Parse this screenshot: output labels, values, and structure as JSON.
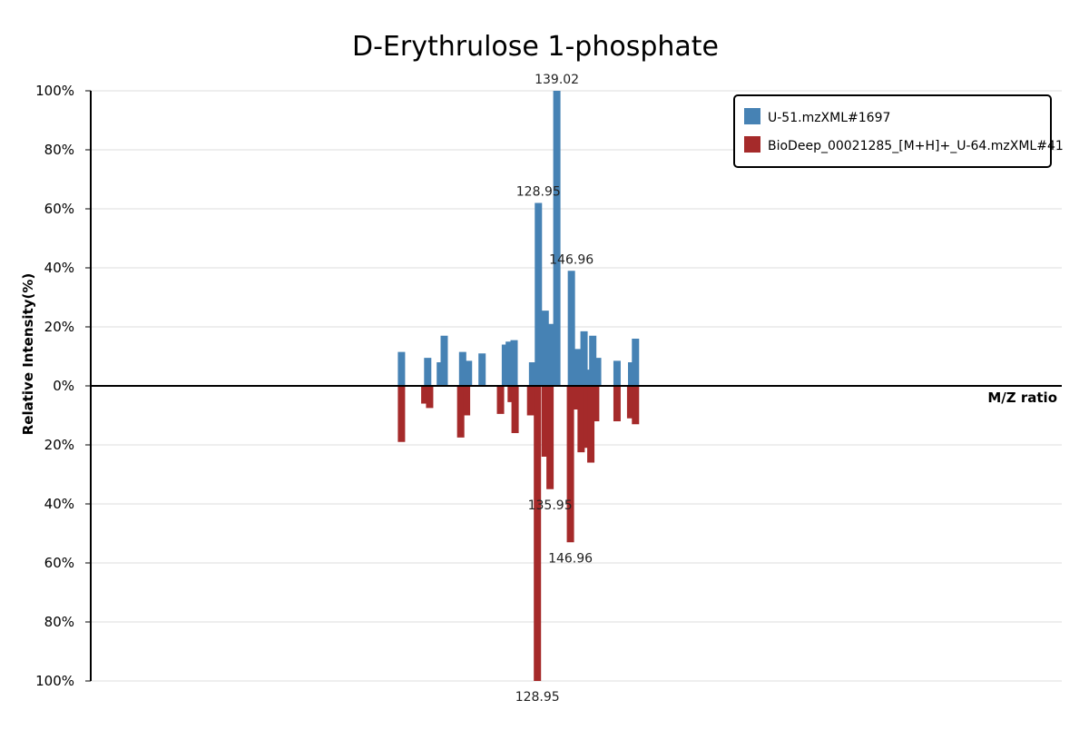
{
  "chart_data": {
    "type": "bar",
    "title": "D-Erythrulose 1-phosphate",
    "xlabel": "M/Z ratio",
    "ylabel": "Relative Intensity(%)",
    "ylim": [
      -100,
      100
    ],
    "yticks": [
      {
        "value": 100,
        "label": "100%"
      },
      {
        "value": 80,
        "label": "80%"
      },
      {
        "value": 60,
        "label": "60%"
      },
      {
        "value": 40,
        "label": "40%"
      },
      {
        "value": 20,
        "label": "20%"
      },
      {
        "value": 0,
        "label": "0%"
      },
      {
        "value": -20,
        "label": "20%"
      },
      {
        "value": -40,
        "label": "40%"
      },
      {
        "value": -60,
        "label": "60%"
      },
      {
        "value": -80,
        "label": "80%"
      },
      {
        "value": -100,
        "label": "100%"
      }
    ],
    "grid": true,
    "legend_position": "top-right",
    "series": [
      {
        "name": "U-51.mzXML#1697",
        "color": "#4682b4",
        "direction": "up",
        "peaks": [
          {
            "x": 0.32,
            "y": 11.5
          },
          {
            "x": 0.347,
            "y": 9.5
          },
          {
            "x": 0.36,
            "y": 8.0
          },
          {
            "x": 0.364,
            "y": 17.0
          },
          {
            "x": 0.383,
            "y": 11.5
          },
          {
            "x": 0.389,
            "y": 8.5
          },
          {
            "x": 0.403,
            "y": 11.0
          },
          {
            "x": 0.427,
            "y": 14.0
          },
          {
            "x": 0.431,
            "y": 15.0
          },
          {
            "x": 0.436,
            "y": 15.5
          },
          {
            "x": 0.455,
            "y": 8.0
          },
          {
            "x": 0.461,
            "y": 62.0,
            "label": "128.95"
          },
          {
            "x": 0.468,
            "y": 25.5
          },
          {
            "x": 0.474,
            "y": 21.0
          },
          {
            "x": 0.48,
            "y": 100.0,
            "label": "139.02"
          },
          {
            "x": 0.495,
            "y": 39.0,
            "label": "146.96"
          },
          {
            "x": 0.502,
            "y": 12.5
          },
          {
            "x": 0.508,
            "y": 18.5
          },
          {
            "x": 0.512,
            "y": 5.5
          },
          {
            "x": 0.517,
            "y": 17.0
          },
          {
            "x": 0.522,
            "y": 9.5
          },
          {
            "x": 0.542,
            "y": 8.5
          },
          {
            "x": 0.557,
            "y": 8.0
          },
          {
            "x": 0.561,
            "y": 16.0
          }
        ]
      },
      {
        "name": "BioDeep_00021285_[M+H]+_U-64.mzXML#41",
        "color": "#a52a2a",
        "direction": "down",
        "peaks": [
          {
            "x": 0.32,
            "y": 19.0
          },
          {
            "x": 0.344,
            "y": 6.0
          },
          {
            "x": 0.349,
            "y": 7.5
          },
          {
            "x": 0.381,
            "y": 17.5
          },
          {
            "x": 0.387,
            "y": 10.0
          },
          {
            "x": 0.422,
            "y": 9.5
          },
          {
            "x": 0.433,
            "y": 5.5
          },
          {
            "x": 0.437,
            "y": 16.0
          },
          {
            "x": 0.453,
            "y": 10.0
          },
          {
            "x": 0.46,
            "y": 100.0,
            "label": "128.95"
          },
          {
            "x": 0.468,
            "y": 24.0
          },
          {
            "x": 0.473,
            "y": 35.0,
            "label": "135.95"
          },
          {
            "x": 0.494,
            "y": 53.0,
            "label": "146.96"
          },
          {
            "x": 0.5,
            "y": 8.0
          },
          {
            "x": 0.505,
            "y": 22.5
          },
          {
            "x": 0.511,
            "y": 21.0
          },
          {
            "x": 0.515,
            "y": 26.0
          },
          {
            "x": 0.52,
            "y": 12.0
          },
          {
            "x": 0.542,
            "y": 12.0
          },
          {
            "x": 0.556,
            "y": 11.0
          },
          {
            "x": 0.561,
            "y": 13.0
          }
        ]
      }
    ]
  }
}
